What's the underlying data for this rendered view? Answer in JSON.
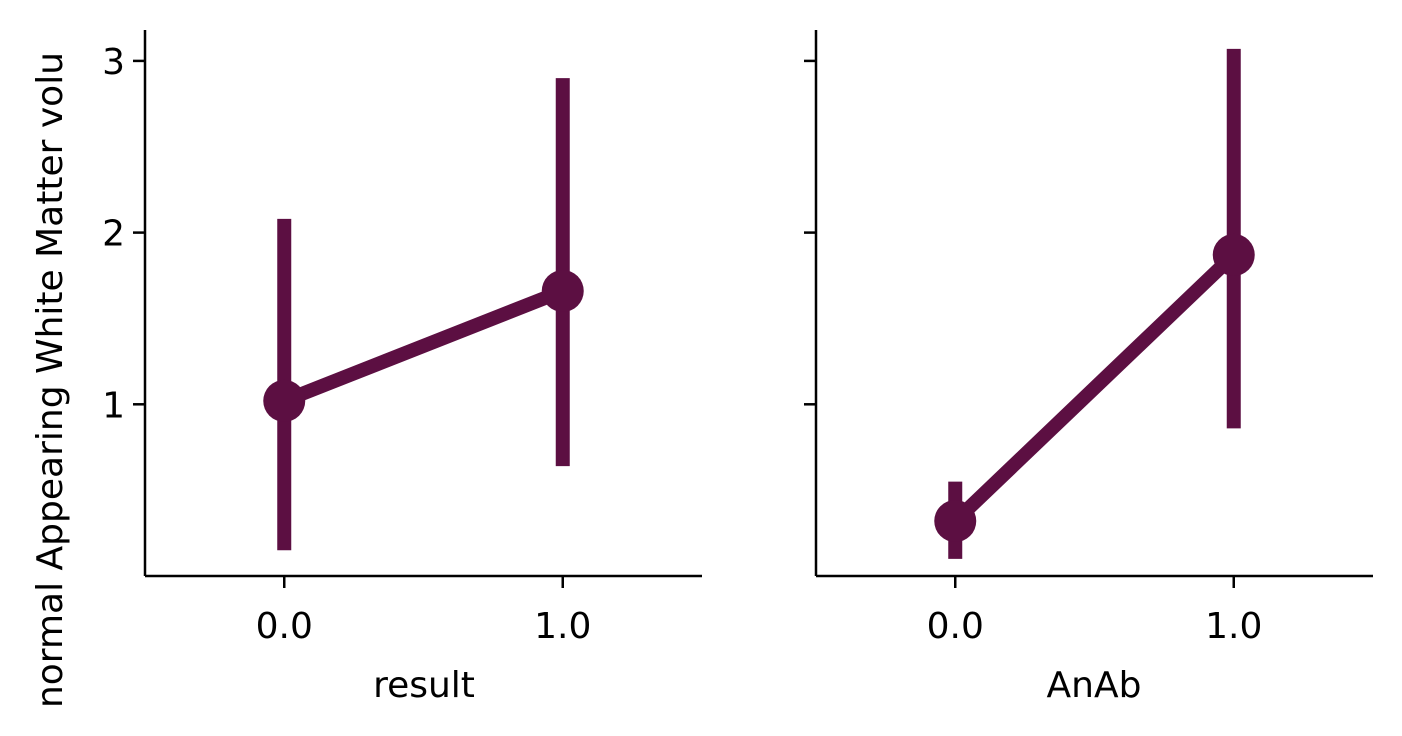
{
  "chart_data": [
    {
      "type": "pointplot",
      "xlabel": "result",
      "ylabel": "normal Appearing White Matter volu",
      "categories": [
        "0.0",
        "1.0"
      ],
      "ylim": [
        0.0,
        3.18
      ],
      "yticks": [
        1,
        2,
        3
      ],
      "series": [
        {
          "values": [
            1.02,
            1.66
          ],
          "ci_low": [
            0.15,
            0.64
          ],
          "ci_high": [
            2.08,
            2.9
          ]
        }
      ]
    },
    {
      "type": "pointplot",
      "xlabel": "AnAb",
      "ylabel": "",
      "categories": [
        "0.0",
        "1.0"
      ],
      "ylim": [
        0.0,
        3.18
      ],
      "yticks": [
        1,
        2,
        3
      ],
      "series": [
        {
          "values": [
            0.32,
            1.87
          ],
          "ci_low": [
            0.1,
            0.86
          ],
          "ci_high": [
            0.55,
            3.07
          ]
        }
      ]
    }
  ],
  "colors": {
    "series": "#5c0f42",
    "axis": "#000000"
  },
  "grid": false,
  "legend": "none",
  "shared_y": true
}
